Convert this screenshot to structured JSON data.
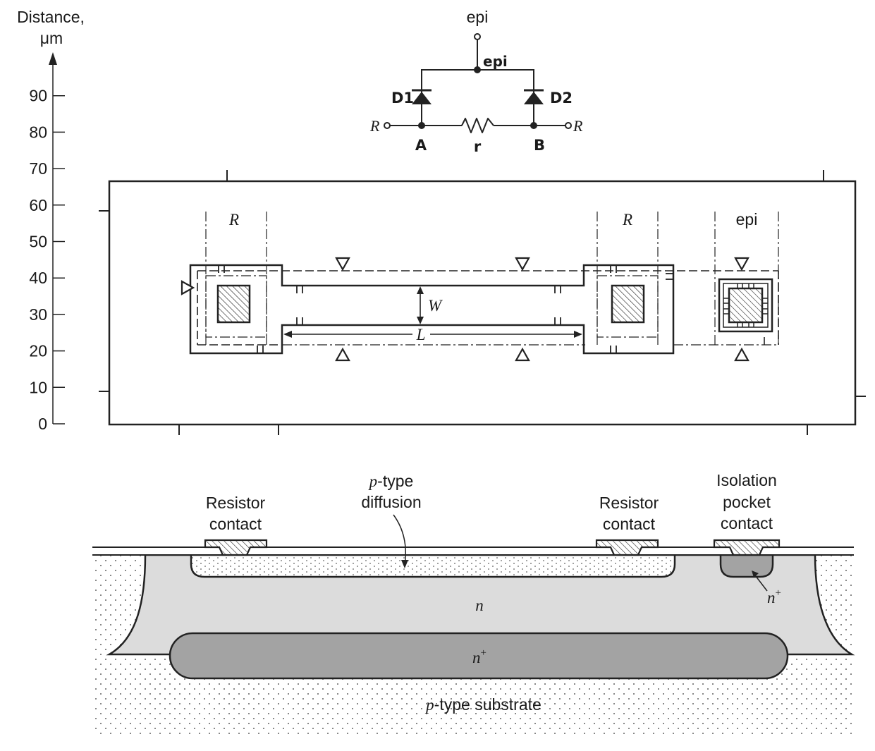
{
  "axis": {
    "title_line1": "Distance,",
    "title_line2": "μm",
    "ticks": [
      "0",
      "10",
      "20",
      "30",
      "40",
      "50",
      "60",
      "70",
      "80",
      "90"
    ]
  },
  "schematic": {
    "top_terminal": "epi",
    "node_epi": "epi",
    "diode1": "D1",
    "diode2": "D2",
    "left_terminal": "R",
    "right_terminal": "R",
    "node_a": "A",
    "node_b": "B",
    "resistor": "r"
  },
  "layout": {
    "label_left_r": "R",
    "label_right_r": "R",
    "label_epi": "epi",
    "label_width": "W",
    "label_length": "L"
  },
  "cross_section": {
    "p_type_diffusion_prefix": "p",
    "p_type_diffusion_line1": "-type",
    "p_type_diffusion_line2": "diffusion",
    "resistor_contact_left_line1": "Resistor",
    "resistor_contact_left_line2": "contact",
    "resistor_contact_right_line1": "Resistor",
    "resistor_contact_right_line2": "contact",
    "isolation_line1": "Isolation",
    "isolation_line2": "pocket",
    "isolation_line3": "contact",
    "n_region": "n",
    "n_plus_small_base": "n",
    "n_plus_small_sup": "+",
    "n_plus_buried_base": "n",
    "n_plus_buried_sup": "+",
    "substrate_prefix": "p",
    "substrate_rest": "-type substrate"
  }
}
